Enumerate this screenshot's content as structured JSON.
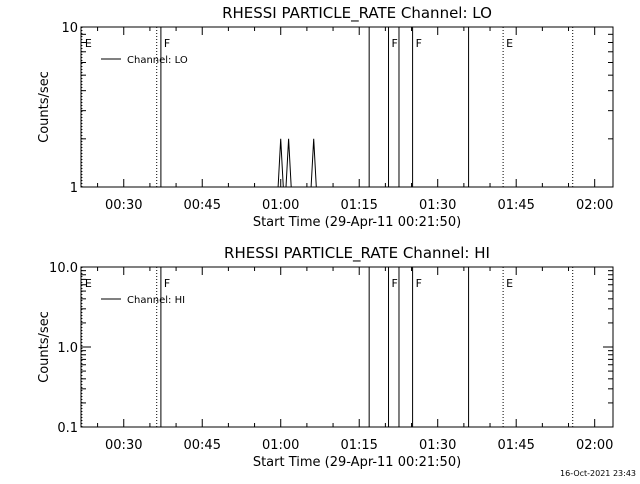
{
  "footer": {
    "timestamp": "16-Oct-2021 23:43"
  },
  "chart_data": [
    {
      "type": "line",
      "title": "RHESSI PARTICLE_RATE Channel: LO",
      "xlabel": "Start Time (29-Apr-11 00:21:50)",
      "ylabel": "Counts/sec",
      "x_ticks": [
        "00:30",
        "00:45",
        "01:00",
        "01:15",
        "01:30",
        "01:45",
        "02:00"
      ],
      "x_tick_minutes": [
        30,
        45,
        60,
        75,
        90,
        105,
        120
      ],
      "xlim_minutes": [
        21.83,
        123.5
      ],
      "y_scale": "log",
      "ylim": [
        1,
        10
      ],
      "y_ticks": [
        {
          "value": 1,
          "label": "1"
        },
        {
          "value": 10,
          "label": "10"
        }
      ],
      "legend": {
        "position": "top-left",
        "label": "Channel: LO"
      },
      "series": [
        {
          "x_minutes": [
            59.5,
            60.0,
            60.5,
            61.0,
            61.5,
            62.0,
            62.5,
            65.8,
            66.3,
            66.8
          ],
          "y": [
            1,
            2,
            1,
            1,
            2,
            1,
            1,
            1,
            2,
            1
          ]
        }
      ],
      "events": [
        {
          "minute": 22.0,
          "label": "E",
          "style": "dotted"
        },
        {
          "minute": 36.3,
          "label": "",
          "style": "dotted"
        },
        {
          "minute": 37.1,
          "label": "F",
          "style": "solid"
        },
        {
          "minute": 76.9,
          "label": "",
          "style": "solid"
        },
        {
          "minute": 80.6,
          "label": "F",
          "style": "solid"
        },
        {
          "minute": 82.6,
          "label": "",
          "style": "solid"
        },
        {
          "minute": 85.2,
          "label": "F",
          "style": "solid"
        },
        {
          "minute": 95.9,
          "label": "",
          "style": "solid"
        },
        {
          "minute": 102.5,
          "label": "E",
          "style": "dotted"
        },
        {
          "minute": 115.8,
          "label": "",
          "style": "dotted"
        }
      ]
    },
    {
      "type": "line",
      "title": "RHESSI PARTICLE_RATE Channel: HI",
      "xlabel": "Start Time (29-Apr-11 00:21:50)",
      "ylabel": "Counts/sec",
      "x_ticks": [
        "00:30",
        "00:45",
        "01:00",
        "01:15",
        "01:30",
        "01:45",
        "02:00"
      ],
      "x_tick_minutes": [
        30,
        45,
        60,
        75,
        90,
        105,
        120
      ],
      "xlim_minutes": [
        21.83,
        123.5
      ],
      "y_scale": "log",
      "ylim": [
        0.1,
        10
      ],
      "y_ticks": [
        {
          "value": 0.1,
          "label": "0.1"
        },
        {
          "value": 1,
          "label": "1.0"
        },
        {
          "value": 10,
          "label": "10.0"
        }
      ],
      "legend": {
        "position": "top-left",
        "label": "Channel: HI"
      },
      "series": [],
      "events": [
        {
          "minute": 22.0,
          "label": "E",
          "style": "dotted"
        },
        {
          "minute": 36.3,
          "label": "",
          "style": "dotted"
        },
        {
          "minute": 37.1,
          "label": "F",
          "style": "solid"
        },
        {
          "minute": 76.9,
          "label": "",
          "style": "solid"
        },
        {
          "minute": 80.6,
          "label": "F",
          "style": "solid"
        },
        {
          "minute": 82.6,
          "label": "",
          "style": "solid"
        },
        {
          "minute": 85.2,
          "label": "F",
          "style": "solid"
        },
        {
          "minute": 95.9,
          "label": "",
          "style": "solid"
        },
        {
          "minute": 102.5,
          "label": "E",
          "style": "dotted"
        },
        {
          "minute": 115.8,
          "label": "",
          "style": "dotted"
        }
      ]
    }
  ]
}
